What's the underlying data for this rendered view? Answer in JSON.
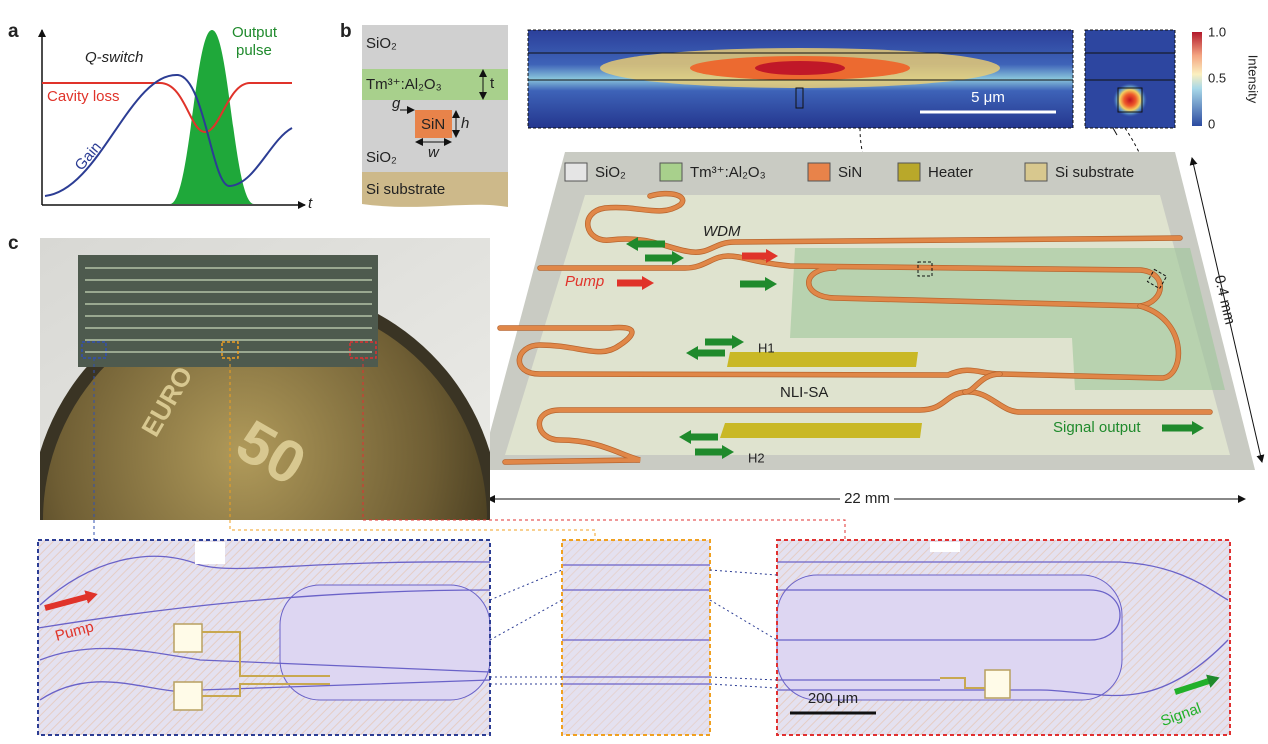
{
  "panels": {
    "a": {
      "label": "a",
      "q_switch": "Q-switch",
      "output_pulse": [
        "Output",
        "pulse"
      ],
      "cavity_loss": "Cavity loss",
      "gain": "Gain",
      "time_axis": "t"
    },
    "b": {
      "label": "b",
      "cross_section": {
        "top_cladding": "SiO₂",
        "gain_layer": "Tm³⁺:Al₂O₃",
        "thickness": "t",
        "gap": "g",
        "core": "SiN",
        "height": "h",
        "width": "w",
        "bottom_cladding": "SiO₂",
        "substrate": "Si substrate"
      },
      "mode_profile": {
        "scale_bar": "5 μm",
        "colorbar_ticks": [
          "1.0",
          "0.5",
          "0"
        ],
        "colorbar_label": "Intensity"
      },
      "legend": [
        "SiO₂",
        "Tm³⁺:Al₂O₃",
        "SiN",
        "Heater",
        "Si substrate"
      ],
      "labels": {
        "wdm": "WDM",
        "pump": "Pump",
        "heater_1": "H1",
        "nli_sa": "NLI-SA",
        "heater_2": "H2",
        "signal_output": "Signal output",
        "depth": "0.4 mm",
        "length": "22 mm"
      }
    },
    "c": {
      "label": "c",
      "pump": "Pump",
      "scale_bar": "200 μm",
      "signal": "Signal"
    }
  }
}
